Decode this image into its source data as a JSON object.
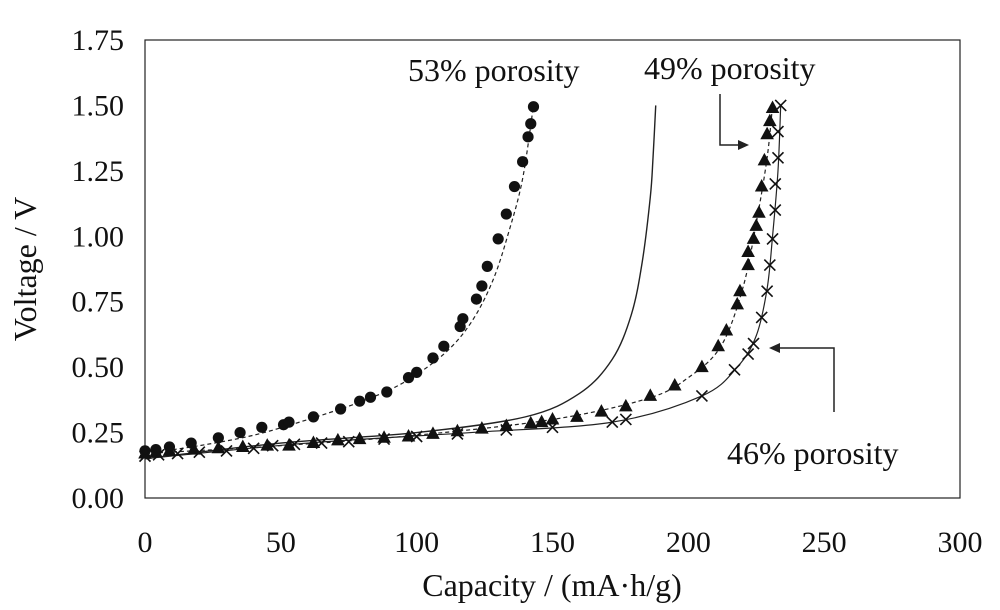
{
  "chart_data": {
    "type": "scatter",
    "xlabel": "Capacity / (mA·h/g)",
    "ylabel": "Voltage / V",
    "xlim": [
      0,
      300
    ],
    "ylim": [
      0,
      1.75
    ],
    "xticks": [
      "0",
      "50",
      "100",
      "150",
      "200",
      "250",
      "300"
    ],
    "yticks": [
      "0.00",
      "0.25",
      "0.50",
      "0.75",
      "1.00",
      "1.25",
      "1.50",
      "1.75"
    ],
    "grid": false,
    "annotations": [
      {
        "text": "53% porosity"
      },
      {
        "text": "49% porosity"
      },
      {
        "text": "46% porosity"
      }
    ],
    "series": [
      {
        "marker": "circle",
        "points": [
          [
            0,
            0.18
          ],
          [
            4,
            0.185
          ],
          [
            9,
            0.195
          ],
          [
            17,
            0.21
          ],
          [
            27,
            0.23
          ],
          [
            35,
            0.25
          ],
          [
            43,
            0.27
          ],
          [
            51,
            0.28
          ],
          [
            53,
            0.29
          ],
          [
            62,
            0.31
          ],
          [
            72,
            0.34
          ],
          [
            79,
            0.37
          ],
          [
            83,
            0.385
          ],
          [
            89,
            0.405
          ],
          [
            97,
            0.46
          ],
          [
            100,
            0.48
          ],
          [
            106,
            0.535
          ],
          [
            110,
            0.58
          ],
          [
            116,
            0.655
          ],
          [
            117,
            0.685
          ],
          [
            122,
            0.76
          ],
          [
            124,
            0.81
          ],
          [
            126,
            0.885
          ],
          [
            130,
            0.99
          ],
          [
            133,
            1.085
          ],
          [
            136,
            1.19
          ],
          [
            139,
            1.285
          ],
          [
            141,
            1.38
          ],
          [
            142,
            1.43
          ],
          [
            143,
            1.495
          ]
        ],
        "fit": [
          [
            0,
            0.17
          ],
          [
            20,
            0.2
          ],
          [
            40,
            0.24
          ],
          [
            60,
            0.3
          ],
          [
            80,
            0.37
          ],
          [
            95,
            0.44
          ],
          [
            110,
            0.55
          ],
          [
            120,
            0.67
          ],
          [
            128,
            0.83
          ],
          [
            134,
            1.02
          ],
          [
            139,
            1.22
          ],
          [
            143,
            1.5
          ]
        ]
      },
      {
        "marker": "none",
        "fit": [
          [
            0,
            0.15
          ],
          [
            50,
            0.21
          ],
          [
            100,
            0.25
          ],
          [
            140,
            0.31
          ],
          [
            160,
            0.4
          ],
          [
            172,
            0.53
          ],
          [
            179,
            0.7
          ],
          [
            183,
            0.9
          ],
          [
            186,
            1.15
          ],
          [
            187,
            1.3
          ],
          [
            188,
            1.5
          ]
        ]
      },
      {
        "marker": "triangle",
        "points": [
          [
            0,
            0.17
          ],
          [
            4,
            0.175
          ],
          [
            9,
            0.18
          ],
          [
            18,
            0.185
          ],
          [
            27,
            0.19
          ],
          [
            36,
            0.195
          ],
          [
            45,
            0.2
          ],
          [
            53,
            0.2
          ],
          [
            62,
            0.21
          ],
          [
            71,
            0.22
          ],
          [
            79,
            0.225
          ],
          [
            88,
            0.23
          ],
          [
            97,
            0.235
          ],
          [
            106,
            0.245
          ],
          [
            115,
            0.255
          ],
          [
            124,
            0.265
          ],
          [
            133,
            0.275
          ],
          [
            142,
            0.285
          ],
          [
            146,
            0.29
          ],
          [
            150,
            0.3
          ],
          [
            159,
            0.31
          ],
          [
            168,
            0.33
          ],
          [
            177,
            0.35
          ],
          [
            186,
            0.39
          ],
          [
            195,
            0.43
          ],
          [
            205,
            0.5
          ],
          [
            211,
            0.58
          ],
          [
            214,
            0.64
          ],
          [
            218,
            0.74
          ],
          [
            219,
            0.79
          ],
          [
            222,
            0.89
          ],
          [
            222,
            0.94
          ],
          [
            224,
            0.99
          ],
          [
            225,
            1.04
          ],
          [
            226,
            1.09
          ],
          [
            227,
            1.19
          ],
          [
            228,
            1.29
          ],
          [
            229,
            1.39
          ],
          [
            230,
            1.44
          ],
          [
            231,
            1.49
          ]
        ],
        "fit": [
          [
            0,
            0.17
          ],
          [
            50,
            0.2
          ],
          [
            100,
            0.24
          ],
          [
            150,
            0.3
          ],
          [
            185,
            0.38
          ],
          [
            200,
            0.46
          ],
          [
            212,
            0.58
          ],
          [
            220,
            0.8
          ],
          [
            225,
            1.05
          ],
          [
            229,
            1.3
          ],
          [
            231,
            1.5
          ]
        ]
      },
      {
        "marker": "x",
        "points": [
          [
            0,
            0.16
          ],
          [
            5,
            0.165
          ],
          [
            12,
            0.17
          ],
          [
            20,
            0.175
          ],
          [
            30,
            0.18
          ],
          [
            40,
            0.19
          ],
          [
            47,
            0.2
          ],
          [
            55,
            0.205
          ],
          [
            65,
            0.21
          ],
          [
            75,
            0.215
          ],
          [
            88,
            0.225
          ],
          [
            100,
            0.235
          ],
          [
            115,
            0.245
          ],
          [
            133,
            0.26
          ],
          [
            150,
            0.27
          ],
          [
            172,
            0.29
          ],
          [
            177,
            0.3
          ],
          [
            205,
            0.39
          ],
          [
            217,
            0.49
          ],
          [
            222,
            0.55
          ],
          [
            224,
            0.59
          ],
          [
            227,
            0.69
          ],
          [
            229,
            0.79
          ],
          [
            230,
            0.89
          ],
          [
            231,
            0.99
          ],
          [
            232,
            1.1
          ],
          [
            232,
            1.2
          ],
          [
            233,
            1.3
          ],
          [
            233,
            1.4
          ],
          [
            234,
            1.5
          ]
        ],
        "fit": [
          [
            0,
            0.15
          ],
          [
            60,
            0.21
          ],
          [
            120,
            0.25
          ],
          [
            172,
            0.29
          ],
          [
            205,
            0.39
          ],
          [
            218,
            0.5
          ],
          [
            225,
            0.62
          ],
          [
            229,
            0.8
          ],
          [
            231,
            1.0
          ],
          [
            233,
            1.25
          ],
          [
            234,
            1.5
          ]
        ]
      }
    ]
  }
}
